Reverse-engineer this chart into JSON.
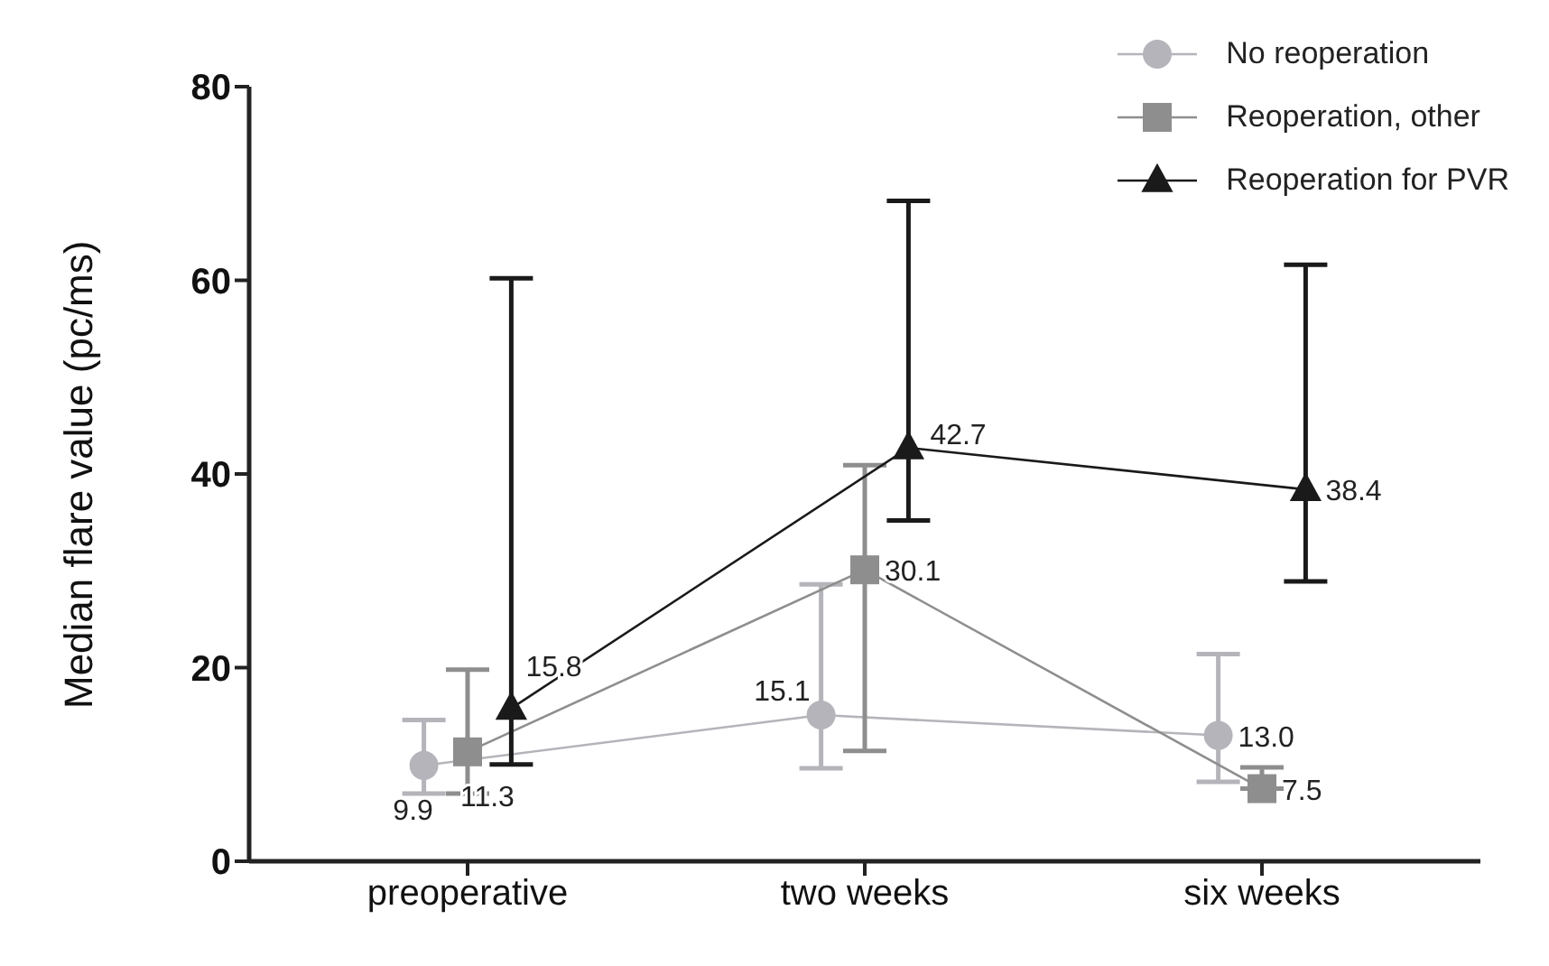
{
  "chart_data": {
    "type": "line",
    "ylabel": "Median flare value (pc/ms)",
    "categories": [
      "preoperative",
      "two weeks",
      "six weeks"
    ],
    "series": [
      {
        "name": "No reoperation",
        "color": "#b4b4ba",
        "marker": "circle",
        "values": [
          9.9,
          15.1,
          13.0
        ],
        "value_labels": [
          "9.9",
          "15.1",
          "13.0"
        ],
        "errors": [
          [
            7.0,
            14.6
          ],
          [
            9.6,
            28.6
          ],
          [
            8.2,
            21.4
          ]
        ]
      },
      {
        "name": "Reoperation, other",
        "color": "#8e8e8e",
        "marker": "square",
        "values": [
          11.3,
          30.1,
          7.5
        ],
        "value_labels": [
          "11.3",
          "30.1",
          "7.5"
        ],
        "errors": [
          [
            7.0,
            19.8
          ],
          [
            11.4,
            40.9
          ],
          [
            7.5,
            9.7
          ]
        ]
      },
      {
        "name": "Reoperation for PVR",
        "color": "#1a1a1a",
        "marker": "triangle",
        "values": [
          15.8,
          42.7,
          38.4
        ],
        "value_labels": [
          "15.8",
          "42.7",
          "38.4"
        ],
        "errors": [
          [
            10.0,
            60.2
          ],
          [
            35.2,
            68.2
          ],
          [
            28.9,
            61.6
          ]
        ]
      }
    ],
    "ylim": [
      0,
      80
    ],
    "yticks": [
      0,
      20,
      40,
      60,
      80
    ],
    "legend": "top right"
  }
}
